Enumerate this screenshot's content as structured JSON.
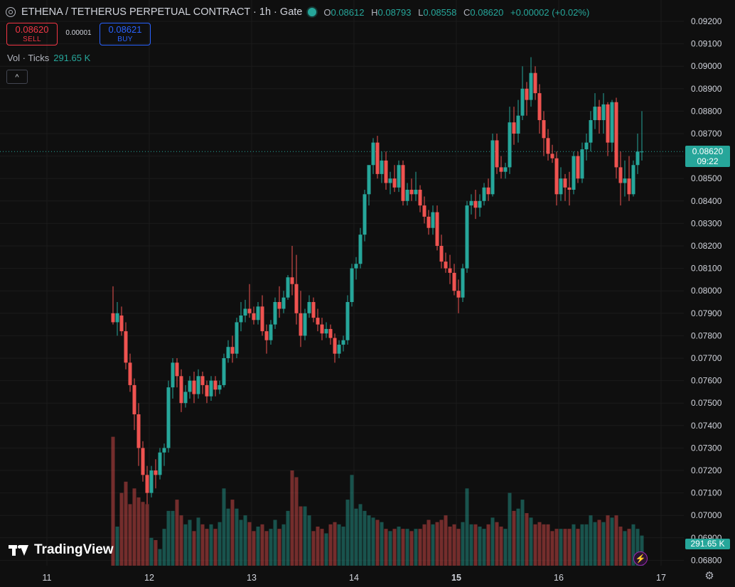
{
  "header": {
    "title": "ETHENA / TETHERUS PERPETUAL CONTRACT · 1h · Gate",
    "o_label": "O",
    "o": "0.08612",
    "h_label": "H",
    "h": "0.08793",
    "l_label": "L",
    "l": "0.08558",
    "c_label": "C",
    "c": "0.08620",
    "change": "+0.00002 (+0.02%)"
  },
  "trade": {
    "sell_price": "0.08620",
    "sell_label": "SELL",
    "spread": "0.00001",
    "buy_price": "0.08621",
    "buy_label": "BUY"
  },
  "volume_legend": {
    "label": "Vol · Ticks",
    "value": "291.65 K"
  },
  "collapse_icon": "chevron-up",
  "last_price": {
    "price": "0.08620",
    "countdown": "09:22"
  },
  "volume_tag": "291.65 K",
  "logo_text": "TradingView",
  "colors": {
    "up": "#26a69a",
    "down": "#ef5350",
    "background": "#0f0f0f"
  },
  "chart_data": {
    "type": "candlestick",
    "interval": "1h",
    "y_ticks": [
      "0.09200",
      "0.09100",
      "0.09000",
      "0.08900",
      "0.08800",
      "0.08700",
      "0.08600",
      "0.08500",
      "0.08400",
      "0.08300",
      "0.08200",
      "0.08100",
      "0.08000",
      "0.07900",
      "0.07800",
      "0.07700",
      "0.07600",
      "0.07500",
      "0.07400",
      "0.07300",
      "0.07200",
      "0.07100",
      "0.07000",
      "0.06900",
      "0.06800"
    ],
    "x_ticks": [
      {
        "label": "11",
        "bold": false
      },
      {
        "label": "12",
        "bold": false
      },
      {
        "label": "13",
        "bold": false
      },
      {
        "label": "14",
        "bold": false
      },
      {
        "label": "15",
        "bold": true
      },
      {
        "label": "16",
        "bold": false
      },
      {
        "label": "17",
        "bold": false
      }
    ],
    "ylim": [
      0.068,
      0.092
    ],
    "last_price": 0.0862,
    "candles": [
      [
        0.079,
        0.0802,
        0.0785,
        0.0786,
        0.0735
      ],
      [
        0.0786,
        0.0795,
        0.078,
        0.079,
        0.0695
      ],
      [
        0.0789,
        0.0793,
        0.078,
        0.0782,
        0.071
      ],
      [
        0.0782,
        0.0786,
        0.0765,
        0.0768,
        0.0715
      ],
      [
        0.0768,
        0.0772,
        0.0755,
        0.0758,
        0.0705
      ],
      [
        0.0758,
        0.0761,
        0.0738,
        0.0745,
        0.0712
      ],
      [
        0.0745,
        0.075,
        0.0722,
        0.073,
        0.0708
      ],
      [
        0.073,
        0.0733,
        0.0715,
        0.0718,
        0.0706
      ],
      [
        0.0718,
        0.0722,
        0.0705,
        0.071,
        0.0705
      ],
      [
        0.071,
        0.0722,
        0.0708,
        0.072,
        0.069
      ],
      [
        0.072,
        0.0725,
        0.0712,
        0.0718,
        0.0689
      ],
      [
        0.0718,
        0.073,
        0.0716,
        0.0728,
        0.0685
      ],
      [
        0.0728,
        0.0732,
        0.0722,
        0.073,
        0.0694
      ],
      [
        0.073,
        0.076,
        0.0728,
        0.0757,
        0.0702
      ],
      [
        0.0757,
        0.077,
        0.0752,
        0.0768,
        0.0702
      ],
      [
        0.0768,
        0.077,
        0.0757,
        0.0762,
        0.0707
      ],
      [
        0.0762,
        0.0765,
        0.0746,
        0.075,
        0.07
      ],
      [
        0.075,
        0.0758,
        0.0748,
        0.0755,
        0.0696
      ],
      [
        0.0755,
        0.0762,
        0.0752,
        0.076,
        0.0698
      ],
      [
        0.076,
        0.0764,
        0.075,
        0.0754,
        0.0693
      ],
      [
        0.0754,
        0.0765,
        0.0752,
        0.0762,
        0.0699
      ],
      [
        0.0762,
        0.0764,
        0.0754,
        0.0758,
        0.0696
      ],
      [
        0.0758,
        0.076,
        0.075,
        0.0753,
        0.0694
      ],
      [
        0.0753,
        0.0762,
        0.0751,
        0.076,
        0.0696
      ],
      [
        0.076,
        0.0762,
        0.0753,
        0.0756,
        0.0694
      ],
      [
        0.0756,
        0.076,
        0.0754,
        0.0758,
        0.0697
      ],
      [
        0.0758,
        0.0772,
        0.0757,
        0.077,
        0.0712
      ],
      [
        0.077,
        0.0778,
        0.0768,
        0.0775,
        0.0703
      ],
      [
        0.0775,
        0.078,
        0.0768,
        0.0772,
        0.0707
      ],
      [
        0.0772,
        0.0788,
        0.077,
        0.0786,
        0.0703
      ],
      [
        0.0786,
        0.0795,
        0.0782,
        0.0789,
        0.0698
      ],
      [
        0.0789,
        0.0796,
        0.0786,
        0.0792,
        0.07
      ],
      [
        0.0792,
        0.0803,
        0.0788,
        0.079,
        0.0697
      ],
      [
        0.079,
        0.0793,
        0.0785,
        0.0787,
        0.0693
      ],
      [
        0.0787,
        0.0795,
        0.0785,
        0.0793,
        0.0695
      ],
      [
        0.0793,
        0.0798,
        0.078,
        0.0782,
        0.0696
      ],
      [
        0.0782,
        0.0785,
        0.0772,
        0.0778,
        0.0693
      ],
      [
        0.0778,
        0.0787,
        0.0776,
        0.0785,
        0.0694
      ],
      [
        0.0785,
        0.0797,
        0.0783,
        0.0795,
        0.0698
      ],
      [
        0.0795,
        0.0802,
        0.0788,
        0.0792,
        0.0694
      ],
      [
        0.0792,
        0.08,
        0.079,
        0.0797,
        0.0696
      ],
      [
        0.0797,
        0.0807,
        0.0796,
        0.0806,
        0.0702
      ],
      [
        0.0806,
        0.082,
        0.0798,
        0.0803,
        0.072
      ],
      [
        0.0803,
        0.0816,
        0.0785,
        0.079,
        0.0717
      ],
      [
        0.079,
        0.08,
        0.0775,
        0.078,
        0.0704
      ],
      [
        0.078,
        0.0792,
        0.0778,
        0.079,
        0.0704
      ],
      [
        0.079,
        0.0798,
        0.0788,
        0.0795,
        0.07
      ],
      [
        0.0795,
        0.0797,
        0.0786,
        0.0788,
        0.0693
      ],
      [
        0.0788,
        0.0792,
        0.0782,
        0.0785,
        0.0695
      ],
      [
        0.0785,
        0.0788,
        0.0778,
        0.0781,
        0.0694
      ],
      [
        0.0781,
        0.0786,
        0.0779,
        0.0783,
        0.0692
      ],
      [
        0.0783,
        0.0785,
        0.0776,
        0.0779,
        0.0696
      ],
      [
        0.0779,
        0.0781,
        0.0768,
        0.0772,
        0.0697
      ],
      [
        0.0772,
        0.0778,
        0.077,
        0.0776,
        0.0696
      ],
      [
        0.0776,
        0.078,
        0.0773,
        0.0778,
        0.0695
      ],
      [
        0.0778,
        0.0798,
        0.0776,
        0.0795,
        0.0707
      ],
      [
        0.0795,
        0.0812,
        0.0793,
        0.081,
        0.0718
      ],
      [
        0.081,
        0.0815,
        0.0805,
        0.0812,
        0.0703
      ],
      [
        0.0812,
        0.0828,
        0.081,
        0.0825,
        0.0705
      ],
      [
        0.0825,
        0.0845,
        0.0822,
        0.0843,
        0.0702
      ],
      [
        0.0843,
        0.0855,
        0.0838,
        0.0856,
        0.07
      ],
      [
        0.0856,
        0.0868,
        0.0852,
        0.0866,
        0.0699
      ],
      [
        0.0866,
        0.0869,
        0.085,
        0.0852,
        0.0698
      ],
      [
        0.0852,
        0.0862,
        0.0848,
        0.0858,
        0.0697
      ],
      [
        0.0858,
        0.0862,
        0.0845,
        0.0848,
        0.0694
      ],
      [
        0.0848,
        0.0853,
        0.0843,
        0.085,
        0.0693
      ],
      [
        0.085,
        0.0856,
        0.0844,
        0.0846,
        0.0694
      ],
      [
        0.0846,
        0.0858,
        0.0844,
        0.0856,
        0.0695
      ],
      [
        0.0856,
        0.0858,
        0.0838,
        0.084,
        0.0694
      ],
      [
        0.084,
        0.0848,
        0.0838,
        0.0845,
        0.0694
      ],
      [
        0.0845,
        0.085,
        0.084,
        0.0843,
        0.0693
      ],
      [
        0.0843,
        0.0853,
        0.084,
        0.0845,
        0.0694
      ],
      [
        0.0845,
        0.0847,
        0.0835,
        0.0838,
        0.0694
      ],
      [
        0.0838,
        0.0842,
        0.083,
        0.0833,
        0.0696
      ],
      [
        0.0833,
        0.0836,
        0.0825,
        0.0828,
        0.0698
      ],
      [
        0.0828,
        0.0838,
        0.0825,
        0.0835,
        0.0696
      ],
      [
        0.0835,
        0.0838,
        0.0818,
        0.082,
        0.0697
      ],
      [
        0.082,
        0.0825,
        0.081,
        0.0813,
        0.0698
      ],
      [
        0.0813,
        0.0817,
        0.0808,
        0.081,
        0.07
      ],
      [
        0.081,
        0.0816,
        0.0803,
        0.0808,
        0.0695
      ],
      [
        0.0808,
        0.0812,
        0.0798,
        0.08,
        0.0696
      ],
      [
        0.08,
        0.0805,
        0.079,
        0.0797,
        0.0694
      ],
      [
        0.0797,
        0.0812,
        0.0795,
        0.081,
        0.0697
      ],
      [
        0.081,
        0.084,
        0.0808,
        0.0838,
        0.0712
      ],
      [
        0.0838,
        0.0843,
        0.0834,
        0.084,
        0.0696
      ],
      [
        0.084,
        0.0845,
        0.0832,
        0.0837,
        0.0696
      ],
      [
        0.0837,
        0.0843,
        0.0833,
        0.084,
        0.0695
      ],
      [
        0.084,
        0.0848,
        0.0838,
        0.0846,
        0.0694
      ],
      [
        0.0846,
        0.085,
        0.084,
        0.0843,
        0.0696
      ],
      [
        0.0843,
        0.087,
        0.0842,
        0.0867,
        0.0699
      ],
      [
        0.0867,
        0.087,
        0.0852,
        0.0855,
        0.0697
      ],
      [
        0.0855,
        0.086,
        0.085,
        0.0853,
        0.0695
      ],
      [
        0.0853,
        0.0857,
        0.085,
        0.0855,
        0.0694
      ],
      [
        0.0855,
        0.0882,
        0.0852,
        0.0875,
        0.071
      ],
      [
        0.0875,
        0.0882,
        0.0865,
        0.087,
        0.0702
      ],
      [
        0.087,
        0.0885,
        0.0866,
        0.0878,
        0.0703
      ],
      [
        0.0878,
        0.09,
        0.0876,
        0.089,
        0.0707
      ],
      [
        0.089,
        0.0893,
        0.0878,
        0.0885,
        0.0701
      ],
      [
        0.0885,
        0.0904,
        0.0882,
        0.0897,
        0.0699
      ],
      [
        0.0897,
        0.09,
        0.0885,
        0.0888,
        0.0696
      ],
      [
        0.0888,
        0.0892,
        0.087,
        0.0876,
        0.0697
      ],
      [
        0.0876,
        0.088,
        0.086,
        0.0868,
        0.0696
      ],
      [
        0.0868,
        0.0872,
        0.0858,
        0.0861,
        0.0696
      ],
      [
        0.0861,
        0.0865,
        0.0857,
        0.0859,
        0.0693
      ],
      [
        0.0859,
        0.0862,
        0.0838,
        0.0843,
        0.0694
      ],
      [
        0.0843,
        0.0855,
        0.084,
        0.085,
        0.0694
      ],
      [
        0.085,
        0.0852,
        0.084,
        0.0846,
        0.0694
      ],
      [
        0.0846,
        0.0853,
        0.0838,
        0.0845,
        0.0694
      ],
      [
        0.0845,
        0.0862,
        0.0843,
        0.086,
        0.0696
      ],
      [
        0.086,
        0.0862,
        0.0848,
        0.085,
        0.0694
      ],
      [
        0.085,
        0.0866,
        0.0848,
        0.0863,
        0.0696
      ],
      [
        0.0863,
        0.087,
        0.0858,
        0.0866,
        0.0696
      ],
      [
        0.0866,
        0.088,
        0.0862,
        0.0876,
        0.07
      ],
      [
        0.0876,
        0.0888,
        0.0872,
        0.0882,
        0.0697
      ],
      [
        0.0882,
        0.0885,
        0.087,
        0.0876,
        0.0698
      ],
      [
        0.0876,
        0.0888,
        0.087,
        0.0883,
        0.0697
      ],
      [
        0.0883,
        0.0884,
        0.086,
        0.0866,
        0.07
      ],
      [
        0.0866,
        0.0885,
        0.0862,
        0.0884,
        0.0699
      ],
      [
        0.0884,
        0.0886,
        0.085,
        0.0855,
        0.07
      ],
      [
        0.0855,
        0.0862,
        0.0838,
        0.0848,
        0.0695
      ],
      [
        0.0848,
        0.0858,
        0.0842,
        0.085,
        0.0693
      ],
      [
        0.085,
        0.086,
        0.084,
        0.0843,
        0.0694
      ],
      [
        0.0843,
        0.0858,
        0.0842,
        0.0856,
        0.0696
      ],
      [
        0.0856,
        0.087,
        0.0852,
        0.0862,
        0.0694
      ],
      [
        0.0862,
        0.088,
        0.0858,
        0.0862,
        0.0691
      ]
    ]
  }
}
